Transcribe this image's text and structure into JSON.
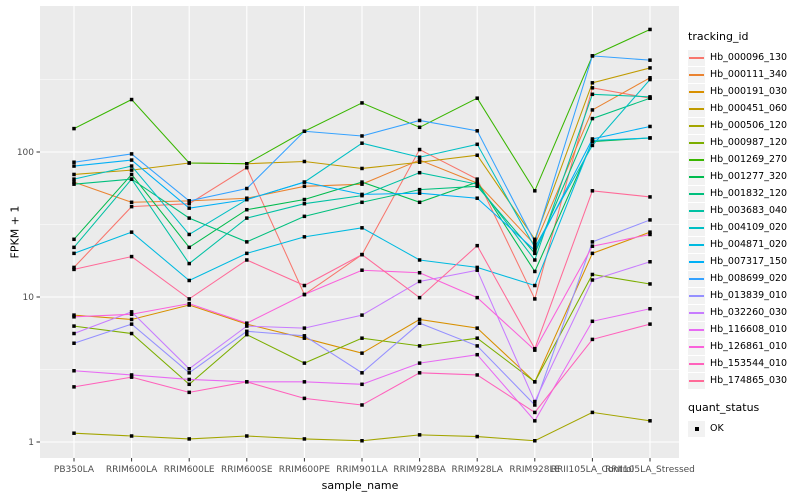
{
  "chart_data": {
    "type": "line",
    "title": "",
    "xlabel": "sample_name",
    "ylabel": "FPKM + 1",
    "y_scale": "log10",
    "y_ticks": [
      1,
      10,
      100
    ],
    "y_tick_labels": [
      "1",
      "10",
      "100"
    ],
    "y_minor_ticks": [
      3.1623,
      31.623,
      316.23
    ],
    "ylim": [
      0.8,
      1000
    ],
    "grid": true,
    "legend_position": "right",
    "panel_bg": "#EBEBEB",
    "grid_color": "#FFFFFF",
    "marker": "black-square",
    "categories": [
      "PB350LA",
      "RRIM600LA",
      "RRIM600LE",
      "RRIM600SE",
      "RRIM600PE",
      "RRIM901LA",
      "RRIM928BA",
      "RRIM928LA",
      "RRIM928LE",
      "RRII105LA_Control",
      "RRII105LA_Stressed"
    ],
    "legend": {
      "color_title": "tracking_id",
      "shape_title": "quant_status",
      "shape_items": [
        {
          "label": "OK",
          "marker": "black-square"
        }
      ]
    },
    "series": [
      {
        "name": "Hb_000096_130",
        "color": "#F8766D",
        "values": [
          16,
          42,
          44,
          78,
          10.4,
          19.6,
          104,
          65,
          9.7,
          277,
          235
        ]
      },
      {
        "name": "Hb_000111_340",
        "color": "#EA8331",
        "values": [
          62,
          45,
          46,
          48,
          58,
          60,
          88,
          61,
          23,
          195,
          325
        ]
      },
      {
        "name": "Hb_000191_030",
        "color": "#D89000",
        "values": [
          7.5,
          7,
          8.8,
          6.5,
          5.2,
          4.1,
          7,
          6.1,
          2.6,
          20,
          28
        ]
      },
      {
        "name": "Hb_000451_060",
        "color": "#C09B00",
        "values": [
          70,
          75,
          84,
          83,
          86,
          77,
          85,
          95,
          25,
          300,
          380
        ]
      },
      {
        "name": "Hb_000506_120",
        "color": "#A3A500",
        "values": [
          1.15,
          1.1,
          1.05,
          1.1,
          1.05,
          1.02,
          1.12,
          1.09,
          1.02,
          1.6,
          1.4
        ]
      },
      {
        "name": "Hb_000987_120",
        "color": "#7CAE00",
        "values": [
          6.3,
          5.6,
          2.5,
          5.5,
          3.5,
          5.2,
          4.6,
          5.2,
          2.6,
          14.3,
          12.3
        ]
      },
      {
        "name": "Hb_001269_270",
        "color": "#39B600",
        "values": [
          145,
          230,
          84,
          83,
          139,
          218,
          148,
          235,
          54,
          460,
          700
        ]
      },
      {
        "name": "Hb_001277_320",
        "color": "#00BB4E",
        "values": [
          25,
          70,
          22,
          40,
          47,
          62,
          45,
          62,
          15,
          118,
          125
        ]
      },
      {
        "name": "Hb_001832_120",
        "color": "#00BF7D",
        "values": [
          60,
          65,
          35,
          24,
          36,
          45,
          55,
          58,
          20,
          170,
          235
        ]
      },
      {
        "name": "Hb_003683_040",
        "color": "#00C1A3",
        "values": [
          22,
          65,
          17,
          35,
          44,
          50,
          72,
          60,
          18,
          250,
          240
        ]
      },
      {
        "name": "Hb_004109_020",
        "color": "#00BFC4",
        "values": [
          65,
          80,
          27,
          47,
          62,
          115,
          92,
          113,
          22,
          111,
          316
        ]
      },
      {
        "name": "Hb_004871_020",
        "color": "#00BAE0",
        "values": [
          20,
          28,
          13,
          20,
          26,
          30,
          18,
          16,
          12,
          120,
          125
        ]
      },
      {
        "name": "Hb_007317_150",
        "color": "#00B0F6",
        "values": [
          80,
          88,
          41,
          47,
          62,
          51,
          52,
          48,
          21,
          123,
          150
        ]
      },
      {
        "name": "Hb_008699_020",
        "color": "#35A2FF",
        "values": [
          85,
          97,
          46,
          56,
          139,
          129,
          165,
          140,
          24,
          460,
          430
        ]
      },
      {
        "name": "Hb_013839_010",
        "color": "#9590FF",
        "values": [
          4.8,
          6.5,
          3,
          5.8,
          5.4,
          3,
          6.6,
          4.6,
          1.8,
          24,
          34
        ]
      },
      {
        "name": "Hb_032260_030",
        "color": "#C77CFF",
        "values": [
          5.6,
          7.9,
          3.2,
          6.3,
          6.1,
          7.5,
          12.8,
          15.3,
          1.9,
          13.1,
          17.5
        ]
      },
      {
        "name": "Hb_116608_010",
        "color": "#E76BF3",
        "values": [
          3.1,
          2.9,
          2.7,
          2.6,
          2.6,
          2.5,
          3.5,
          4,
          1.4,
          6.8,
          8.3
        ]
      },
      {
        "name": "Hb_126861_010",
        "color": "#FA62DB",
        "values": [
          7.3,
          7.6,
          9,
          6.6,
          10.4,
          15.3,
          14.7,
          9.9,
          4.3,
          22.4,
          27
        ]
      },
      {
        "name": "Hb_153544_010",
        "color": "#FF62BC",
        "values": [
          2.4,
          2.8,
          2.2,
          2.6,
          2,
          1.8,
          3,
          2.9,
          1.6,
          5.1,
          6.5
        ]
      },
      {
        "name": "Hb_174865_030",
        "color": "#FF6A98",
        "values": [
          15.5,
          19,
          9.7,
          18,
          12,
          19.6,
          9.9,
          22.6,
          4.4,
          54,
          49
        ]
      }
    ]
  }
}
